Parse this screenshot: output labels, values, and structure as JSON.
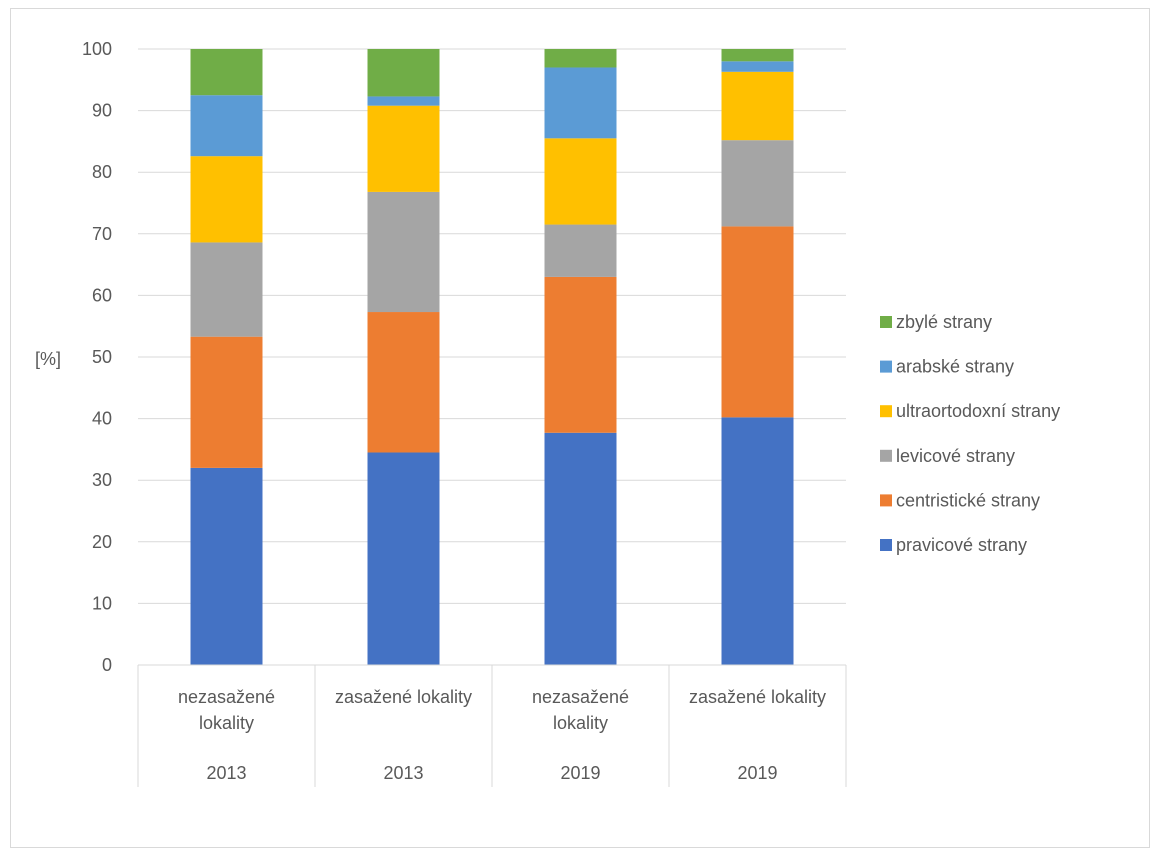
{
  "chart_data": {
    "type": "bar",
    "stacked": true,
    "ylabel": "[%]",
    "ylim": [
      0,
      100
    ],
    "yticks": [
      0,
      10,
      20,
      30,
      40,
      50,
      60,
      70,
      80,
      90,
      100
    ],
    "grid": true,
    "legend_position": "right",
    "categories": [
      {
        "label": [
          "nezasažené",
          "lokality"
        ],
        "group": "2013"
      },
      {
        "label": [
          "zasažené lokality"
        ],
        "group": "2013"
      },
      {
        "label": [
          "nezasažené",
          "lokality"
        ],
        "group": "2019"
      },
      {
        "label": [
          "zasažené lokality"
        ],
        "group": "2019"
      }
    ],
    "series": [
      {
        "name": "pravicové strany",
        "color": "#4472C4",
        "values": [
          32.0,
          34.5,
          37.7,
          40.2
        ]
      },
      {
        "name": "centristické strany",
        "color": "#ED7D31",
        "values": [
          21.3,
          22.8,
          25.3,
          31.0
        ]
      },
      {
        "name": "levicové strany",
        "color": "#A5A5A5",
        "values": [
          15.3,
          19.5,
          8.5,
          14.0
        ]
      },
      {
        "name": "ultraortodoxní strany",
        "color": "#FFC000",
        "values": [
          14.0,
          14.0,
          14.0,
          11.1
        ]
      },
      {
        "name": "arabské strany",
        "color": "#5B9BD5",
        "values": [
          9.9,
          1.5,
          11.5,
          1.7
        ]
      },
      {
        "name": "zbylé strany",
        "color": "#70AD47",
        "values": [
          7.5,
          7.7,
          3.0,
          2.0
        ]
      }
    ]
  }
}
